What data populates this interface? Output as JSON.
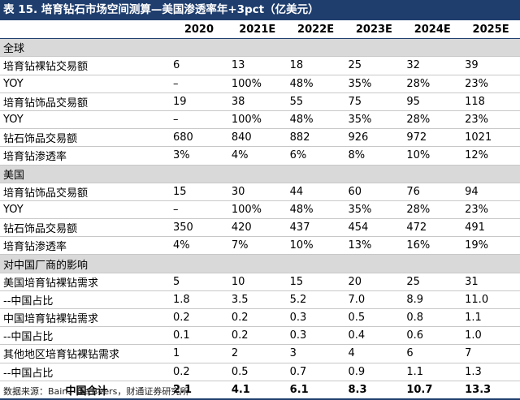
{
  "title": "表 15. 培育钻石市场空间测算—美国渗透率年+3pct（亿美元）",
  "columns": [
    "2020",
    "2021E",
    "2022E",
    "2023E",
    "2024E",
    "2025E"
  ],
  "rows": [
    {
      "type": "section",
      "label": "全球"
    },
    {
      "type": "data",
      "label": "培育钻裸钻交易额",
      "values": [
        "6",
        "13",
        "18",
        "25",
        "32",
        "39"
      ]
    },
    {
      "type": "data",
      "label": "YOY",
      "values": [
        "–",
        "100%",
        "48%",
        "35%",
        "28%",
        "23%"
      ]
    },
    {
      "type": "data",
      "label": "培育钻饰品交易额",
      "values": [
        "19",
        "38",
        "55",
        "75",
        "95",
        "118"
      ]
    },
    {
      "type": "data",
      "label": "YOY",
      "values": [
        "–",
        "100%",
        "48%",
        "35%",
        "28%",
        "23%"
      ]
    },
    {
      "type": "data",
      "label": "钻石饰品交易额",
      "values": [
        "680",
        "840",
        "882",
        "926",
        "972",
        "1021"
      ]
    },
    {
      "type": "data",
      "label": "培育钻渗透率",
      "values": [
        "3%",
        "4%",
        "6%",
        "8%",
        "10%",
        "12%"
      ]
    },
    {
      "type": "section",
      "label": "美国"
    },
    {
      "type": "data",
      "label": "培育钻饰品交易额",
      "values": [
        "15",
        "30",
        "44",
        "60",
        "76",
        "94"
      ]
    },
    {
      "type": "data",
      "label": "YOY",
      "values": [
        "–",
        "100%",
        "48%",
        "35%",
        "28%",
        "23%"
      ]
    },
    {
      "type": "data",
      "label": "钻石饰品交易额",
      "values": [
        "350",
        "420",
        "437",
        "454",
        "472",
        "491"
      ]
    },
    {
      "type": "data",
      "label": "培育钻渗透率",
      "values": [
        "4%",
        "7%",
        "10%",
        "13%",
        "16%",
        "19%"
      ]
    },
    {
      "type": "section",
      "label": "对中国厂商的影响"
    },
    {
      "type": "data",
      "label": "美国培育钻裸钻需求",
      "values": [
        "5",
        "10",
        "15",
        "20",
        "25",
        "31"
      ]
    },
    {
      "type": "data",
      "label": "--中国占比",
      "values": [
        "1.8",
        "3.5",
        "5.2",
        "7.0",
        "8.9",
        "11.0"
      ]
    },
    {
      "type": "data",
      "label": "中国培育钻裸钻需求",
      "values": [
        "0.2",
        "0.2",
        "0.3",
        "0.5",
        "0.8",
        "1.1"
      ]
    },
    {
      "type": "data",
      "label": "--中国占比",
      "values": [
        "0.1",
        "0.2",
        "0.3",
        "0.4",
        "0.6",
        "1.0"
      ]
    },
    {
      "type": "data",
      "label": "其他地区培育钻裸钻需求",
      "values": [
        "1",
        "2",
        "3",
        "4",
        "6",
        "7"
      ]
    },
    {
      "type": "data",
      "label": "--中国占比",
      "values": [
        "0.2",
        "0.5",
        "0.7",
        "0.9",
        "1.1",
        "1.3"
      ]
    },
    {
      "type": "total",
      "label": "中国合计",
      "values": [
        "2.1",
        "4.1",
        "6.1",
        "8.3",
        "10.7",
        "13.3"
      ]
    }
  ],
  "source": "数据来源：Bain、De Beers，财通证券研究所"
}
